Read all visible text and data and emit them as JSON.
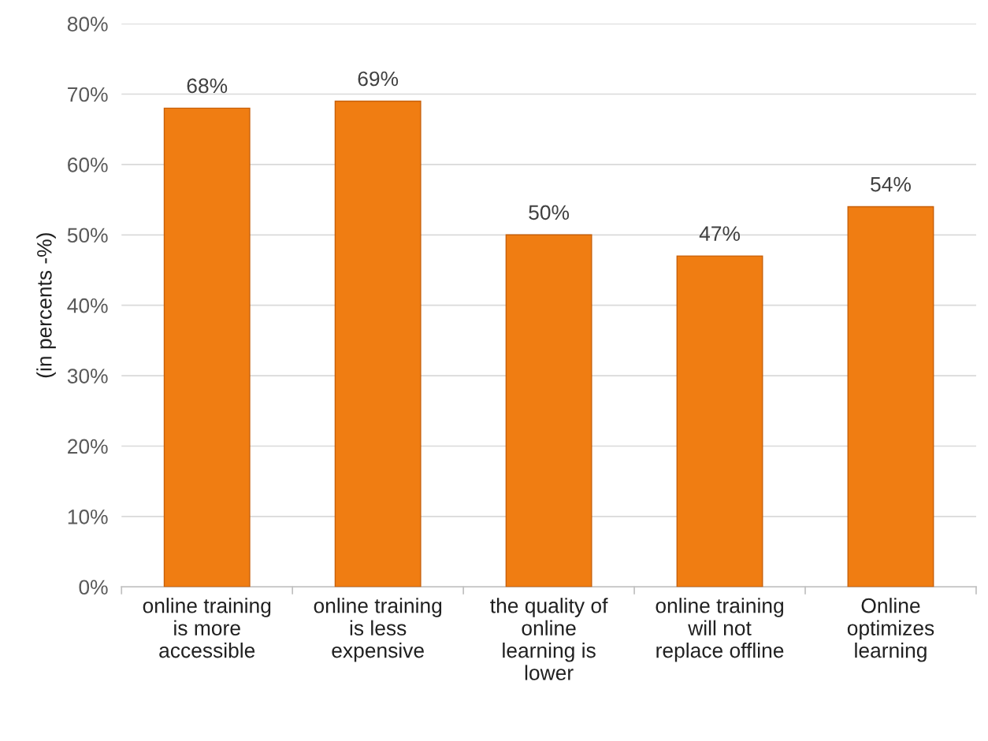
{
  "chart_data": {
    "type": "bar",
    "ylabel": "(in percents -%)",
    "categories": [
      "online training\nis more\naccessible",
      "online training\nis less\nexpensive",
      "the quality of\nonline\nlearning is\nlower",
      "online training\nwill not\nreplace offline",
      "Online\noptimizes\nlearning"
    ],
    "values": [
      68,
      69,
      50,
      47,
      54
    ],
    "value_labels": [
      "68%",
      "69%",
      "50%",
      "47%",
      "54%"
    ],
    "color": "#f07d12",
    "ylim": [
      0,
      80
    ],
    "yticks": [
      {
        "value": 0,
        "label": "0%"
      },
      {
        "value": 10,
        "label": "10%"
      },
      {
        "value": 20,
        "label": "20%"
      },
      {
        "value": 30,
        "label": "30%"
      },
      {
        "value": 40,
        "label": "40%"
      },
      {
        "value": 50,
        "label": "50%"
      },
      {
        "value": 60,
        "label": "60%"
      },
      {
        "value": 70,
        "label": "70%"
      },
      {
        "value": 80,
        "label": "80%"
      }
    ],
    "grid": "y",
    "legend": false
  }
}
